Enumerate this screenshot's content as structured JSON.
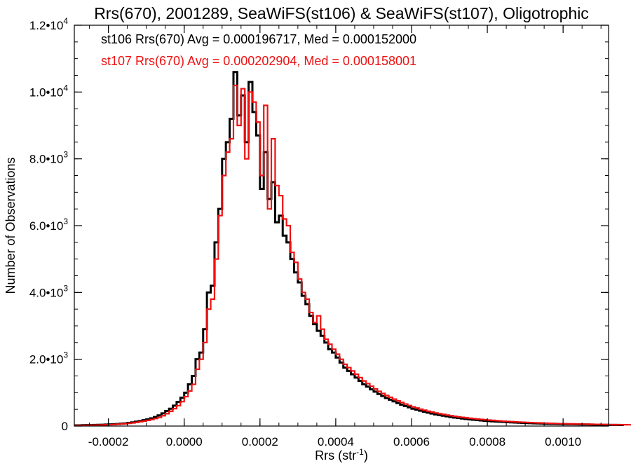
{
  "chart_data": {
    "type": "histogram",
    "title": "Rrs(670), 2001289, SeaWiFS(st106) & SeaWiFS(st107), Oligotrophic",
    "xlabel": "Rrs (str",
    "xlabel_sup": "-1",
    "xlabel_end": ")",
    "ylabel": "Number of Observations",
    "xlim": [
      -0.00029,
      0.00112
    ],
    "ylim": [
      0,
      12000
    ],
    "grid": false,
    "x_ticks": [
      {
        "value": -0.0002,
        "label": "-0.0002"
      },
      {
        "value": 0.0,
        "label": "0.0000"
      },
      {
        "value": 0.0002,
        "label": "0.0002"
      },
      {
        "value": 0.0004,
        "label": "0.0004"
      },
      {
        "value": 0.0006,
        "label": "0.0006"
      },
      {
        "value": 0.0008,
        "label": "0.0008"
      },
      {
        "value": 0.001,
        "label": "0.0010"
      }
    ],
    "y_ticks": [
      {
        "value": 0,
        "mant": "0",
        "exp": ""
      },
      {
        "value": 2000,
        "mant": "2.0•10",
        "exp": "3"
      },
      {
        "value": 4000,
        "mant": "4.0•10",
        "exp": "3"
      },
      {
        "value": 6000,
        "mant": "6.0•10",
        "exp": "3"
      },
      {
        "value": 8000,
        "mant": "8.0•10",
        "exp": "3"
      },
      {
        "value": 10000,
        "mant": "1.0•10",
        "exp": "4"
      },
      {
        "value": 12000,
        "mant": "1.2•10",
        "exp": "4"
      }
    ],
    "bin_start": -0.00029,
    "bin_width": 1e-05,
    "annotations": [
      {
        "text": "st106 Rrs(670) Avg = 0.000196717, Med = 0.000152000",
        "color": "#000000"
      },
      {
        "text": "st107 Rrs(670) Avg = 0.000202904, Med = 0.000158001",
        "color": "#ee1111"
      }
    ],
    "series": [
      {
        "color": "#000000",
        "values": [
          20,
          22,
          25,
          28,
          30,
          33,
          36,
          40,
          45,
          50,
          55,
          60,
          70,
          80,
          95,
          110,
          130,
          150,
          175,
          200,
          230,
          270,
          320,
          380,
          450,
          520,
          610,
          720,
          850,
          1000,
          1250,
          1500,
          2000,
          2200,
          2900,
          4000,
          4200,
          5500,
          6500,
          8000,
          8500,
          9200,
          10600,
          9300,
          9900,
          8500,
          10300,
          9400,
          8700,
          7100,
          8200,
          6800,
          7300,
          6100,
          6300,
          5700,
          5500,
          5000,
          4600,
          4300,
          3900,
          3650,
          3300,
          3050,
          2850,
          2700,
          2500,
          2300,
          2200,
          2050,
          1900,
          1750,
          1650,
          1550,
          1450,
          1350,
          1250,
          1180,
          1100,
          1030,
          960,
          900,
          840,
          790,
          740,
          690,
          640,
          600,
          560,
          520,
          490,
          460,
          430,
          400,
          375,
          350,
          330,
          310,
          290,
          270,
          255,
          240,
          225,
          212,
          200,
          188,
          177,
          167,
          158,
          150,
          142,
          135,
          128,
          122,
          116,
          110,
          105,
          100,
          95,
          90,
          86,
          82,
          78,
          75,
          72,
          69,
          66,
          63,
          60,
          58,
          56,
          54,
          52,
          50,
          48,
          46,
          44,
          42,
          40,
          38,
          36,
          35,
          34,
          33,
          32
        ]
      },
      {
        "color": "#ee1111",
        "values": [
          15,
          17,
          19,
          21,
          24,
          27,
          30,
          34,
          38,
          43,
          48,
          55,
          62,
          70,
          82,
          95,
          110,
          130,
          150,
          170,
          195,
          225,
          260,
          310,
          370,
          440,
          520,
          610,
          730,
          880,
          1050,
          1250,
          1700,
          2000,
          2500,
          3500,
          3800,
          5000,
          6300,
          7500,
          8200,
          8600,
          10200,
          9000,
          10100,
          8000,
          10000,
          9700,
          9100,
          7500,
          9600,
          6500,
          8600,
          7200,
          6900,
          6200,
          6000,
          5200,
          4900,
          4400,
          4000,
          3800,
          3400,
          3100,
          3300,
          2900,
          2600,
          2450,
          2300,
          2150,
          2000,
          1850,
          1750,
          1650,
          1550,
          1450,
          1350,
          1270,
          1190,
          1110,
          1040,
          975,
          915,
          860,
          805,
          755,
          705,
          660,
          615,
          575,
          540,
          505,
          475,
          445,
          418,
          392,
          370,
          348,
          328,
          310,
          292,
          276,
          261,
          247,
          234,
          222,
          210,
          199,
          189,
          179,
          170,
          161,
          153,
          145,
          138,
          131,
          125,
          119,
          113,
          108,
          103,
          98,
          94,
          90,
          86,
          82,
          78,
          75,
          72,
          69,
          66,
          63,
          61,
          59,
          57,
          55,
          53,
          51,
          49,
          47,
          45,
          43,
          42,
          41,
          40,
          39,
          38
        ]
      }
    ]
  }
}
